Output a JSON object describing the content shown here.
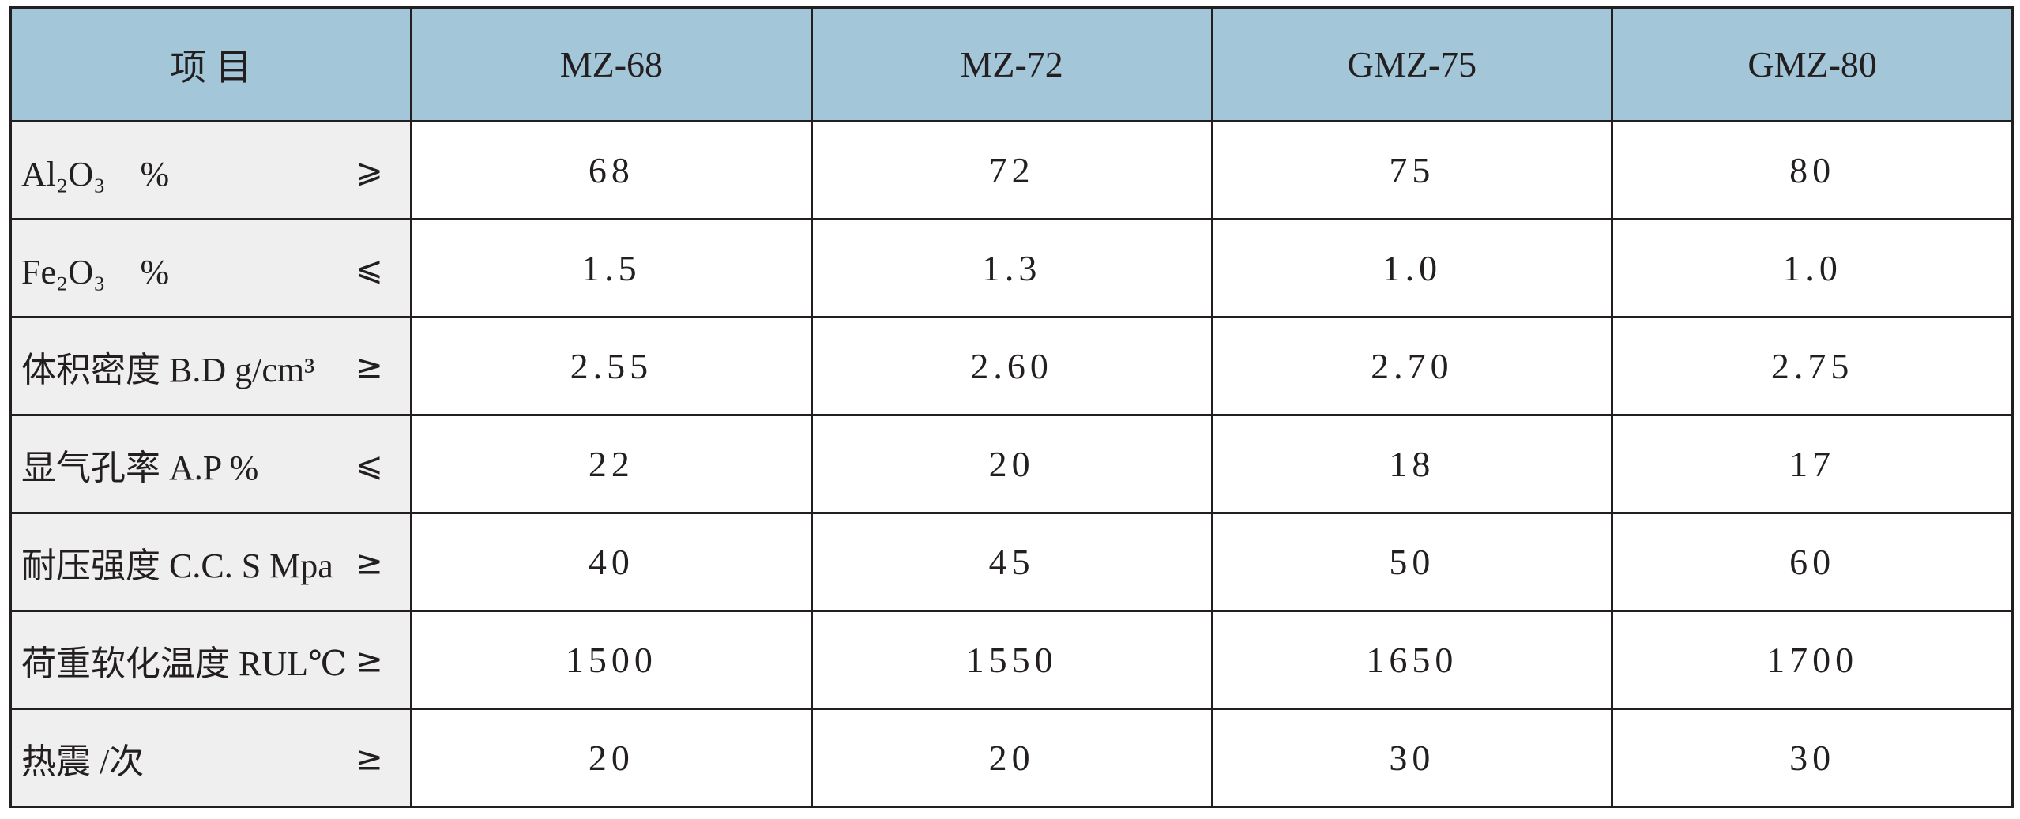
{
  "table": {
    "header": [
      "项 目",
      "MZ-68",
      "MZ-72",
      "GMZ-75",
      "GMZ-80"
    ],
    "rows": [
      {
        "label": "Al₂O₃　%",
        "sign": "⩾",
        "values": [
          "68",
          "72",
          "75",
          "80"
        ]
      },
      {
        "label": "Fe₂O₃　%",
        "sign": "⩽",
        "values": [
          "1.5",
          "1.3",
          "1.0",
          "1.0"
        ]
      },
      {
        "label": "体积密度 B.D  g/cm³",
        "sign": "≥",
        "values": [
          "2.55",
          "2.60",
          "2.70",
          "2.75"
        ]
      },
      {
        "label": "显气孔率 A.P %",
        "sign": "⩽",
        "values": [
          "22",
          "20",
          "18",
          "17"
        ]
      },
      {
        "label": "耐压强度 C.C. S Mpa",
        "sign": "≥",
        "values": [
          "40",
          "45",
          "50",
          "60"
        ]
      },
      {
        "label": "荷重软化温度 RUL℃",
        "sign": "≥",
        "values": [
          "1500",
          "1550",
          "1650",
          "1700"
        ]
      },
      {
        "label": "热震 /次",
        "sign": "≥",
        "values": [
          "20",
          "20",
          "30",
          "30"
        ]
      }
    ]
  }
}
